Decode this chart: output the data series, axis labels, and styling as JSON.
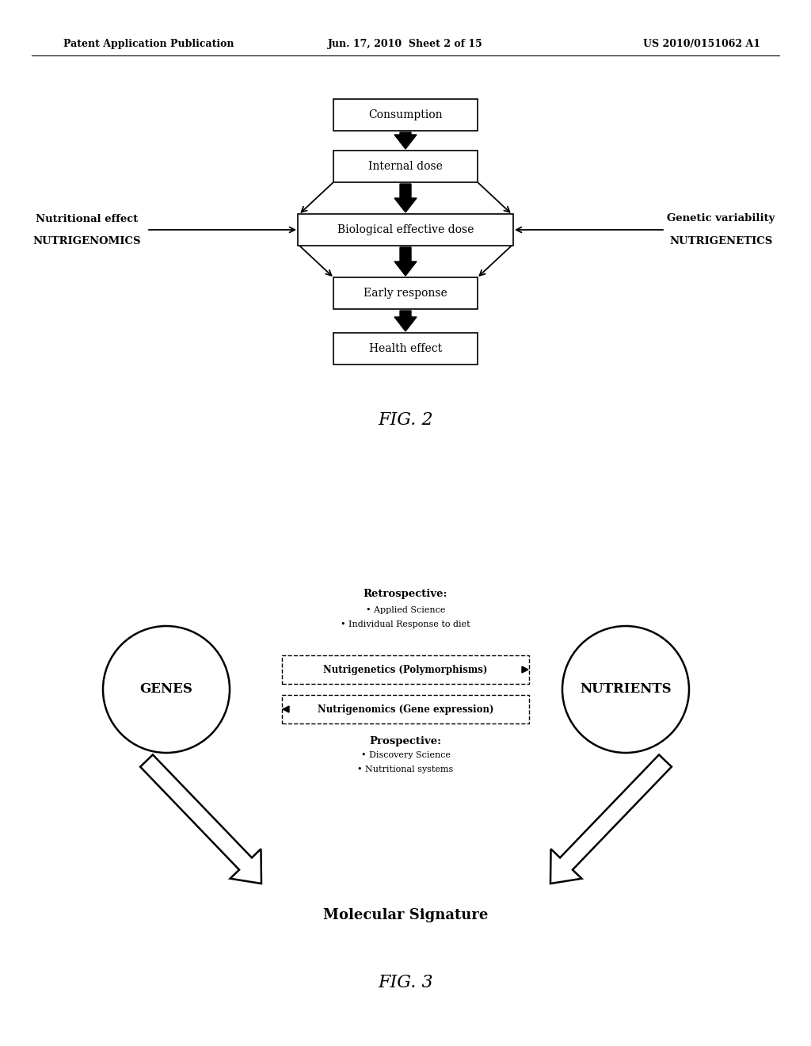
{
  "bg_color": "#ffffff",
  "header_left": "Patent Application Publication",
  "header_mid": "Jun. 17, 2010  Sheet 2 of 15",
  "header_right": "US 2010/0151062 A1",
  "fig2_title": "FIG. 2",
  "fig3_title": "FIG. 3",
  "box_labels": [
    "Consumption",
    "Internal dose",
    "Biological effective dose",
    "Early response",
    "Health effect"
  ],
  "left_label_line1": "Nutritional effect",
  "left_label_line2": "NUTRIGENOMICS",
  "right_label_line1": "Genetic variability",
  "right_label_line2": "NUTRIGENETICS",
  "fig3_retrospective_title": "Retrospective:",
  "fig3_retro_bullet1": "• Applied Science",
  "fig3_retro_bullet2": "• Individual Response to diet",
  "fig3_prospective_title": "Prospective:",
  "fig3_pros_bullet1": "• Discovery Science",
  "fig3_pros_bullet2": "• Nutritional systems",
  "fig3_mol_sig": "Molecular Signature",
  "genes_label": "GENES",
  "nutrients_label": "NUTRIENTS",
  "nutrigenetics_label": "Nutrigenetics (Polymorphisms)",
  "nutrigenomics_label": "Nutrigenomics (Gene expression)"
}
